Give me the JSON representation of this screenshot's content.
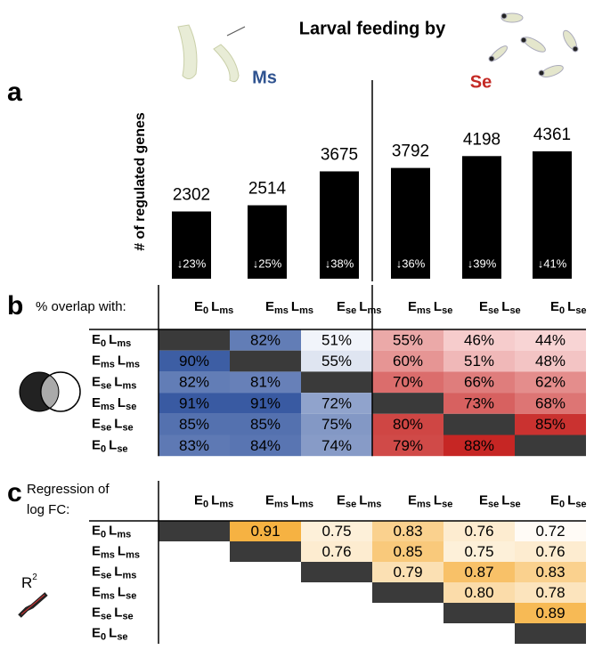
{
  "title": "Larval feeding by",
  "groups": [
    {
      "label": "Ms",
      "color": "#2f5390"
    },
    {
      "label": "Se",
      "color": "#c42a25"
    }
  ],
  "panel_labels": [
    "a",
    "b",
    "c"
  ],
  "chart_data": [
    {
      "type": "bar",
      "y_label": "# of regulated genes",
      "color": "#000000",
      "values": [
        2302,
        2514,
        3675,
        3792,
        4198,
        4361
      ],
      "down_labels": [
        "↓23%",
        "↓25%",
        "↓38%",
        "↓36%",
        "↓39%",
        "↓41%"
      ],
      "ylim": [
        0,
        5000
      ]
    },
    {
      "type": "heatmap",
      "caption": "% overlap with:",
      "labels": [
        [
          "E",
          "0",
          "L",
          "ms"
        ],
        [
          "E",
          "ms",
          "L",
          "ms"
        ],
        [
          "E",
          "se",
          "L",
          "ms"
        ],
        [
          "E",
          "ms",
          "L",
          "se"
        ],
        [
          "E",
          "se",
          "L",
          "se"
        ],
        [
          "E",
          "0",
          "L",
          "se"
        ]
      ],
      "values": [
        [
          null,
          82,
          51,
          55,
          46,
          44
        ],
        [
          90,
          null,
          55,
          60,
          51,
          48
        ],
        [
          82,
          81,
          null,
          70,
          66,
          62
        ],
        [
          91,
          91,
          72,
          null,
          73,
          68
        ],
        [
          85,
          85,
          75,
          80,
          null,
          85
        ],
        [
          83,
          84,
          74,
          79,
          88,
          null
        ]
      ],
      "value_labels": [
        [
          null,
          "82%",
          "51%",
          "55%",
          "46%",
          "44%"
        ],
        [
          "90%",
          null,
          "55%",
          "60%",
          "51%",
          "48%"
        ],
        [
          "82%",
          "81%",
          null,
          "70%",
          "66%",
          "62%"
        ],
        [
          "91%",
          "91%",
          "72%",
          null,
          "73%",
          "68%"
        ],
        [
          "85%",
          "85%",
          "75%",
          "80%",
          null,
          "85%"
        ],
        [
          "83%",
          "84%",
          "74%",
          "79%",
          "88%",
          null
        ]
      ]
    },
    {
      "type": "heatmap",
      "caption": [
        "Regression of",
        "log FC:"
      ],
      "icon_label": [
        "R",
        "2"
      ],
      "labels": [
        [
          "E",
          "0",
          "L",
          "ms"
        ],
        [
          "E",
          "ms",
          "L",
          "ms"
        ],
        [
          "E",
          "se",
          "L",
          "ms"
        ],
        [
          "E",
          "ms",
          "L",
          "se"
        ],
        [
          "E",
          "se",
          "L",
          "se"
        ],
        [
          "E",
          "0",
          "L",
          "se"
        ]
      ],
      "values": [
        [
          null,
          0.91,
          0.75,
          0.83,
          0.76,
          0.72
        ],
        [
          null,
          null,
          0.76,
          0.85,
          0.75,
          0.76
        ],
        [
          null,
          null,
          null,
          0.79,
          0.87,
          0.83
        ],
        [
          null,
          null,
          null,
          null,
          0.8,
          0.78
        ],
        [
          null,
          null,
          null,
          null,
          null,
          0.89
        ],
        [
          null,
          null,
          null,
          null,
          null,
          null
        ]
      ],
      "value_labels": [
        [
          null,
          "0.91",
          "0.75",
          "0.83",
          "0.76",
          "0.72"
        ],
        [
          null,
          null,
          "0.76",
          "0.85",
          "0.75",
          "0.76"
        ],
        [
          null,
          null,
          null,
          "0.79",
          "0.87",
          "0.83"
        ],
        [
          null,
          null,
          null,
          null,
          "0.80",
          "0.78"
        ],
        [
          null,
          null,
          null,
          null,
          null,
          "0.89"
        ],
        [
          null,
          null,
          null,
          null,
          null,
          null
        ]
      ]
    }
  ]
}
